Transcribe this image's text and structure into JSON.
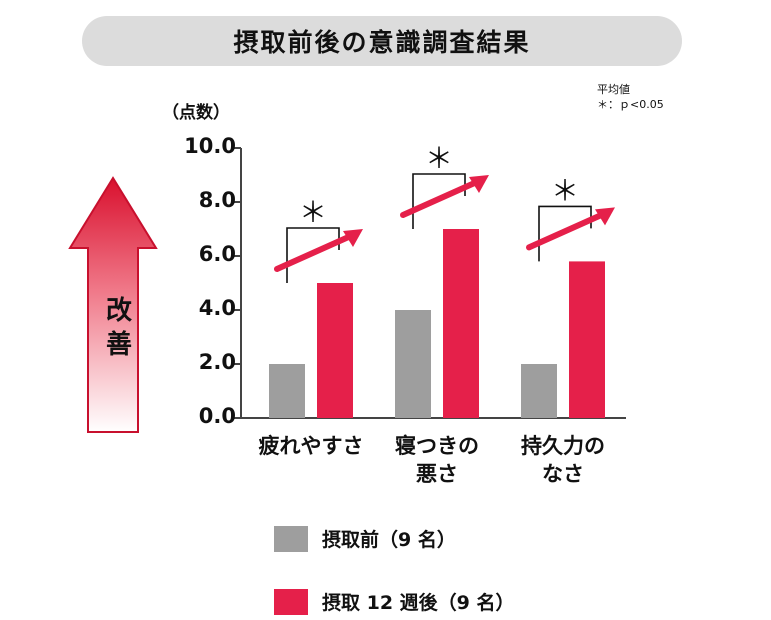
{
  "title": "摂取前後の意識調査結果",
  "note": {
    "line1": "平均値",
    "line2": "＊：ｐ<0.05"
  },
  "improve_label": [
    "改",
    "善"
  ],
  "legend": [
    {
      "label": "摂取前（9 名）",
      "color": "#9e9e9e"
    },
    {
      "label": "摂取 12 週後（9 名）",
      "color": "#e5204a"
    }
  ],
  "chart_data": {
    "type": "bar",
    "ylabel": "（点数）",
    "ylim": [
      0,
      10
    ],
    "y_ticks": [
      "0.0",
      "2.0",
      "4.0",
      "6.0",
      "8.0",
      "10.0"
    ],
    "categories": [
      [
        "疲れやすさ"
      ],
      [
        "寝つきの",
        "悪さ"
      ],
      [
        "持久力の",
        "なさ"
      ]
    ],
    "series": [
      {
        "name": "摂取前（9 名）",
        "values": [
          2.0,
          4.0,
          2.0
        ],
        "color": "#9e9e9e"
      },
      {
        "name": "摂取 12 週後（9 名）",
        "values": [
          5.0,
          7.0,
          5.8
        ],
        "color": "#e5204a"
      }
    ],
    "significance_marker": "＊",
    "significant": [
      true,
      true,
      true
    ],
    "grid": false,
    "legend_position": "bottom"
  }
}
